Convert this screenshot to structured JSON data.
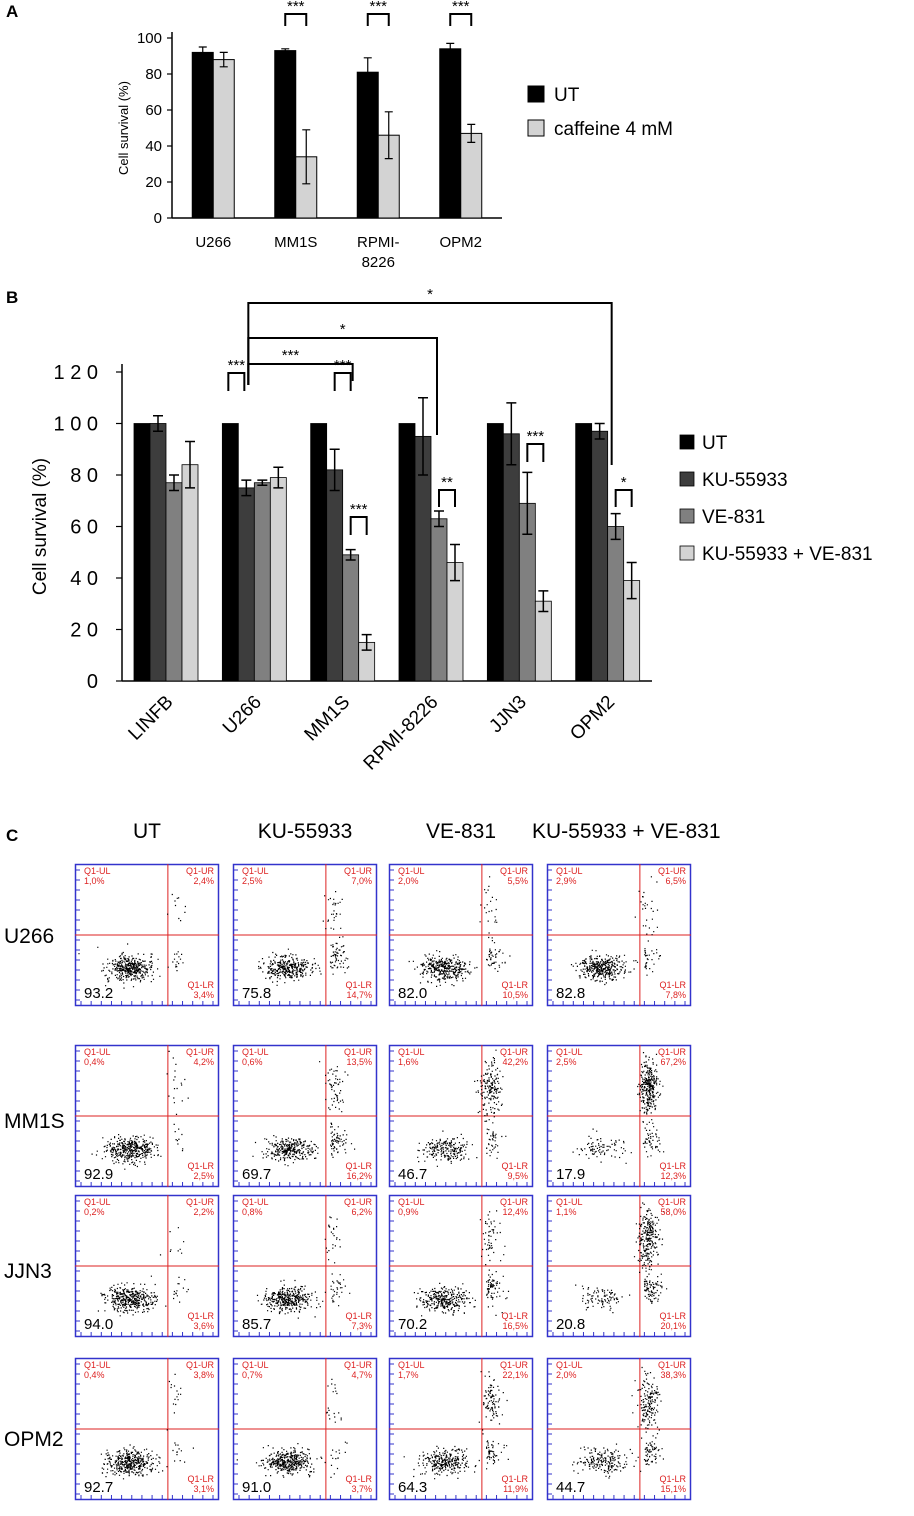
{
  "panel_labels": [
    "A",
    "B",
    "C"
  ],
  "chart_data": [
    {
      "type": "bar",
      "panel": "A",
      "categories": [
        "U266",
        "MM1S",
        "RPMI-\n8226",
        "OPM2"
      ],
      "series": [
        {
          "name": "UT",
          "color": "#000000",
          "values": [
            92,
            93,
            81,
            94
          ],
          "errors": [
            3,
            1,
            8,
            3
          ]
        },
        {
          "name": "caffeine 4 mM",
          "color": "#d3d3d3",
          "values": [
            88,
            34,
            46,
            47
          ],
          "errors": [
            4,
            15,
            13,
            5
          ]
        }
      ],
      "ylabel": "Cell survival (%)",
      "xlabel": "",
      "ylim": [
        0,
        100
      ],
      "yticks": [
        "0",
        "20",
        "40",
        "60",
        "80",
        "100"
      ],
      "significance": [
        "***",
        "***",
        "***"
      ],
      "legend_position": "right"
    },
    {
      "type": "bar",
      "panel": "B",
      "categories": [
        "LINFB",
        "U266",
        "MM1S",
        "RPMI-8226",
        "JJN3",
        "OPM2"
      ],
      "series": [
        {
          "name": "UT",
          "color": "#000000",
          "values": [
            100,
            100,
            100,
            100,
            100,
            100
          ],
          "errors": [
            0,
            0,
            0,
            0,
            0,
            0
          ]
        },
        {
          "name": "KU-55933",
          "color": "#3d3d3d",
          "values": [
            100,
            75,
            82,
            95,
            96,
            97
          ],
          "errors": [
            3,
            3,
            8,
            15,
            12,
            3
          ]
        },
        {
          "name": "VE-831",
          "color": "#808080",
          "values": [
            77,
            77,
            49,
            63,
            69,
            60
          ],
          "errors": [
            3,
            1,
            2,
            3,
            12,
            5
          ]
        },
        {
          "name": "KU-55933 + VE-831",
          "color": "#d3d3d3",
          "values": [
            84,
            79,
            15,
            46,
            31,
            39
          ],
          "errors": [
            9,
            4,
            3,
            7,
            4,
            7
          ]
        }
      ],
      "ylabel": "Cell survival (%)",
      "xlabel": "",
      "ylim": [
        0,
        120
      ],
      "yticks": [
        "0",
        "2 0",
        "4 0",
        "6 0",
        "8 0",
        "1 0 0",
        "1 2 0"
      ],
      "significance": {
        "within": [
          "***",
          "***",
          "***",
          "**",
          "***",
          "*"
        ],
        "brackets": [
          "***",
          "*",
          "*"
        ]
      },
      "legend_position": "right"
    }
  ],
  "flow_cytometry": {
    "columns": [
      "UT",
      "KU-55933",
      "VE-831",
      "KU-55933 + VE-831"
    ],
    "rows": [
      {
        "label": "U266",
        "cells": [
          {
            "ul": "1,0%",
            "ur": "2,4%",
            "lr": "3,4%",
            "main": "93.2"
          },
          {
            "ul": "2,5%",
            "ur": "7,0%",
            "lr": "14,7%",
            "main": "75.8"
          },
          {
            "ul": "2,0%",
            "ur": "5,5%",
            "lr": "10,5%",
            "main": "82.0"
          },
          {
            "ul": "2,9%",
            "ur": "6,5%",
            "lr": "7,8%",
            "main": "82.8"
          }
        ]
      },
      {
        "label": "MM1S",
        "cells": [
          {
            "ul": "0,4%",
            "ur": "4,2%",
            "lr": "2,5%",
            "main": "92.9"
          },
          {
            "ul": "0,6%",
            "ur": "13,5%",
            "lr": "16,2%",
            "main": "69.7"
          },
          {
            "ul": "1,6%",
            "ur": "42,2%",
            "lr": "9,5%",
            "main": "46.7"
          },
          {
            "ul": "2,5%",
            "ur": "67,2%",
            "lr": "12,3%",
            "main": "17.9"
          }
        ]
      },
      {
        "label": "JJN3",
        "cells": [
          {
            "ul": "0,2%",
            "ur": "2,2%",
            "lr": "3,6%",
            "main": "94.0"
          },
          {
            "ul": "0,8%",
            "ur": "6,2%",
            "lr": "7,3%",
            "main": "85.7"
          },
          {
            "ul": "0,9%",
            "ur": "12,4%",
            "lr": "16,5%",
            "main": "70.2"
          },
          {
            "ul": "1,1%",
            "ur": "58,0%",
            "lr": "20,1%",
            "main": "20.8"
          }
        ]
      },
      {
        "label": "OPM2",
        "cells": [
          {
            "ul": "0,4%",
            "ur": "3,8%",
            "lr": "3,1%",
            "main": "92.7"
          },
          {
            "ul": "0,7%",
            "ur": "4,7%",
            "lr": "3,7%",
            "main": "91.0"
          },
          {
            "ul": "1,7%",
            "ur": "22,1%",
            "lr": "11,9%",
            "main": "64.3"
          },
          {
            "ul": "2,0%",
            "ur": "38,3%",
            "lr": "15,1%",
            "main": "44.7"
          }
        ]
      }
    ],
    "quadrant_names": {
      "ul": "Q1-UL",
      "ur": "Q1-UR",
      "lr": "Q1-LR"
    },
    "colors": {
      "frame": "#3333cc",
      "gate": "#dd2222",
      "dots": "#000000"
    }
  }
}
